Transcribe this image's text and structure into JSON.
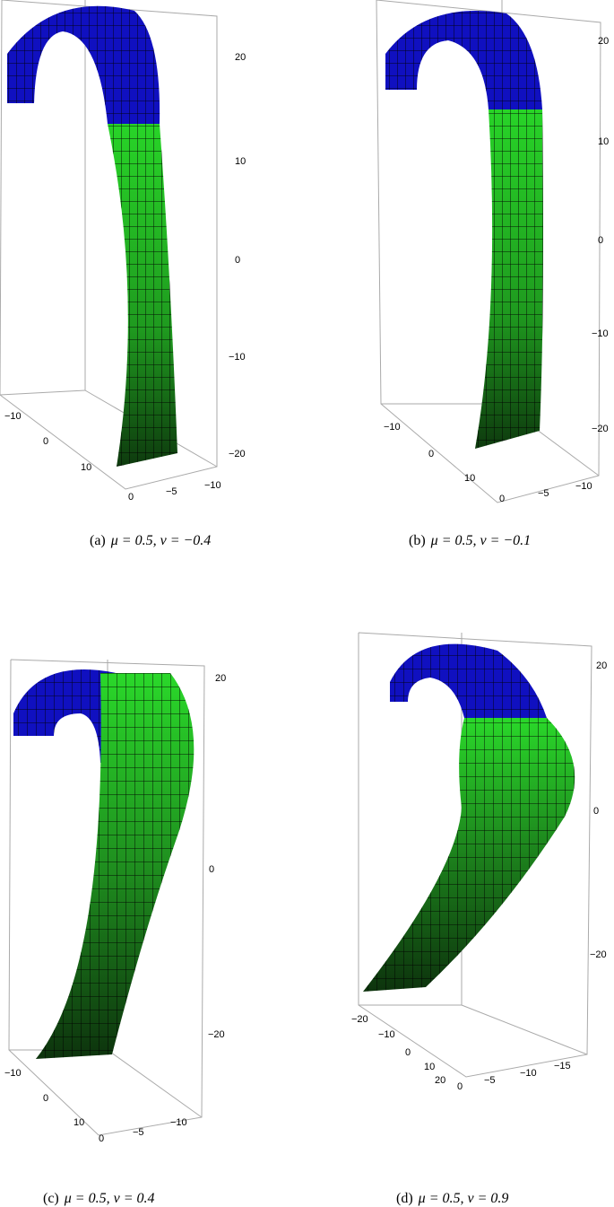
{
  "colors": {
    "upper_band": "#1010c0",
    "lower_band": "#20d020",
    "mesh": "#000000",
    "box": "#a8a8a8"
  },
  "panels": [
    {
      "label": "(a)",
      "math": "μ = 0.5, ν = −0.4",
      "z_ticks": [
        "20",
        "10",
        "0",
        "−10",
        "−20"
      ],
      "x_ticks": [
        "−10",
        "0",
        "10"
      ],
      "y_ticks": [
        "0",
        "−5",
        "−10"
      ]
    },
    {
      "label": "(b)",
      "math": "μ = 0.5, ν = −0.1",
      "z_ticks": [
        "20",
        "10",
        "0",
        "−10",
        "−20"
      ],
      "x_ticks": [
        "−10",
        "0",
        "10"
      ],
      "y_ticks": [
        "0",
        "−5",
        "−10"
      ]
    },
    {
      "label": "(c)",
      "math": "μ = 0.5, ν = 0.4",
      "z_ticks": [
        "20",
        "0",
        "−20"
      ],
      "x_ticks": [
        "−10",
        "0",
        "10"
      ],
      "y_ticks": [
        "0",
        "−5",
        "−10"
      ]
    },
    {
      "label": "(d)",
      "math": "μ = 0.5, ν = 0.9",
      "z_ticks": [
        "20",
        "0",
        "−20"
      ],
      "x_ticks": [
        "−20",
        "−10",
        "0",
        "10",
        "20"
      ],
      "y_ticks": [
        "0",
        "−5",
        "−10",
        "−15"
      ]
    }
  ]
}
